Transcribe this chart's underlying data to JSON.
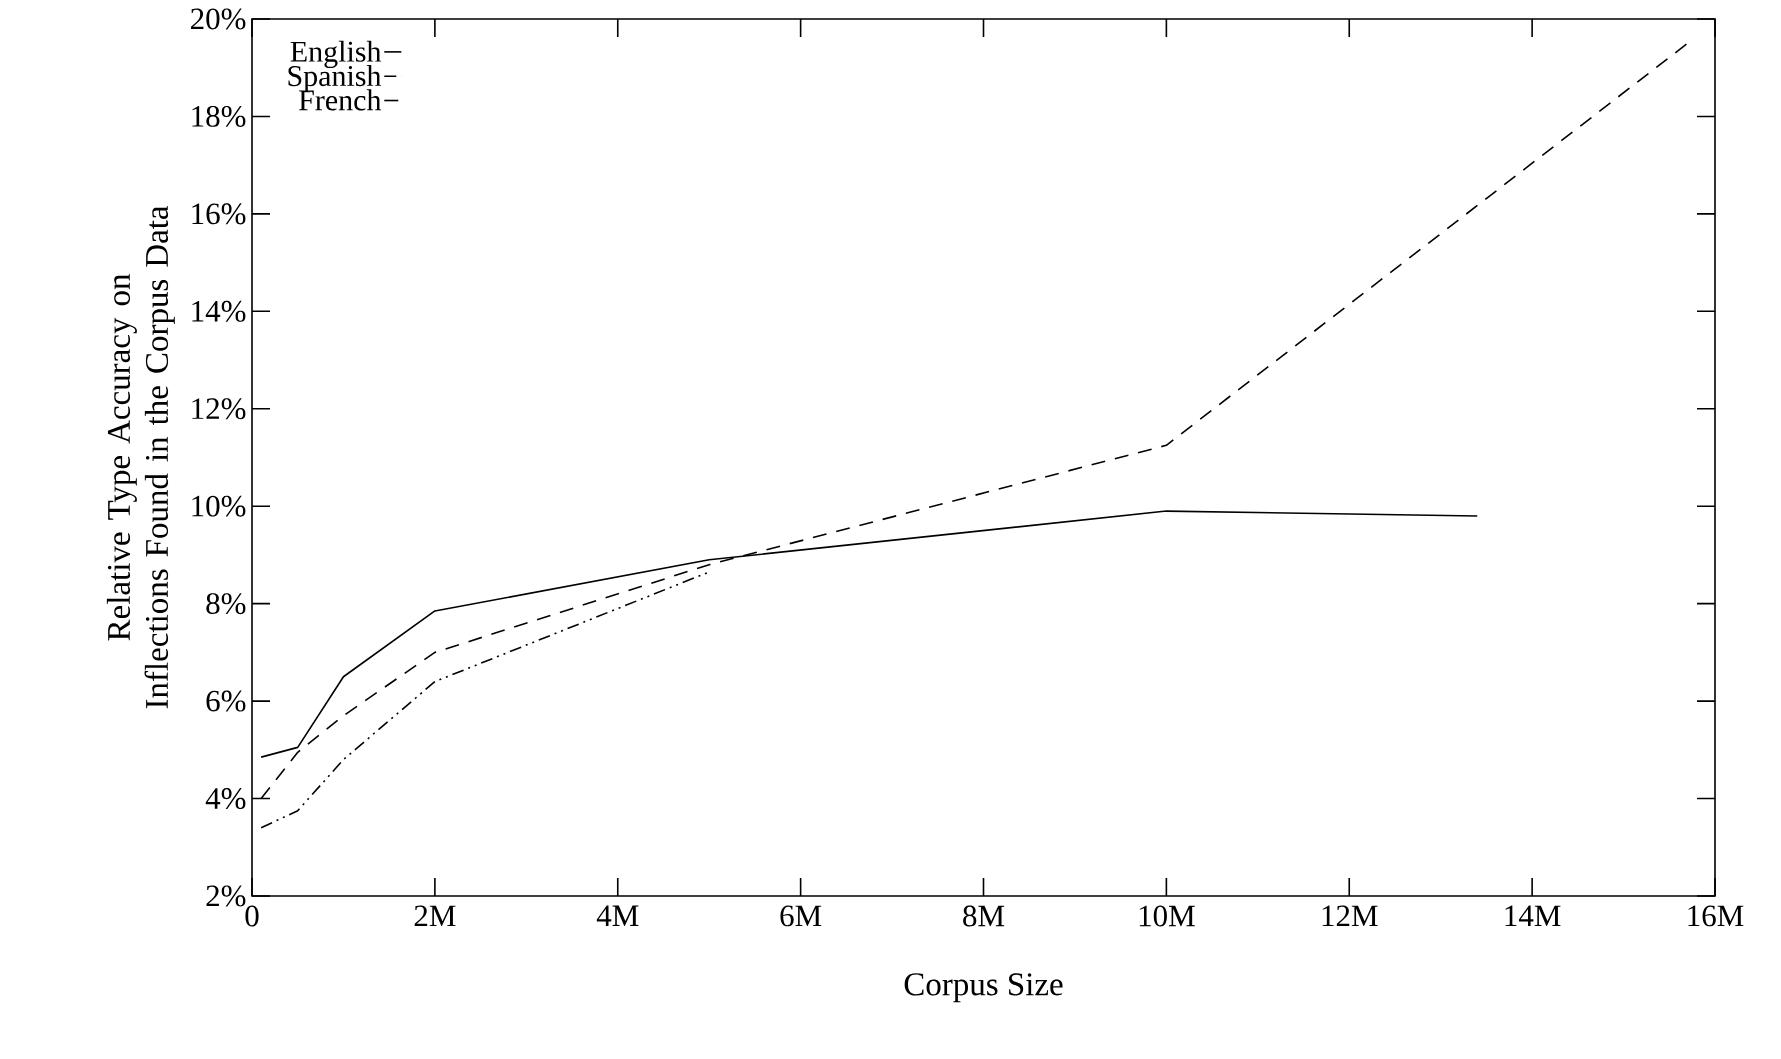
{
  "chart_data": {
    "type": "line",
    "xlabel": "Corpus Size",
    "ylabel": "Relative Type Accuracy on Inflections Found in the Corpus Data",
    "xlim": [
      0,
      16
    ],
    "ylim": [
      2,
      20
    ],
    "xticks": [
      0,
      {
        "value": 2,
        "label": "2M"
      },
      {
        "value": 4,
        "label": "4M"
      },
      {
        "value": 6,
        "label": "6M"
      },
      {
        "value": 8,
        "label": "8M"
      },
      {
        "value": 10,
        "label": "10M"
      },
      {
        "value": 12,
        "label": "12M"
      },
      {
        "value": 14,
        "label": "14M"
      },
      {
        "value": 16,
        "label": "16M"
      }
    ],
    "yticks": [
      {
        "value": 2,
        "label": "2%"
      },
      {
        "value": 4,
        "label": "4%"
      },
      {
        "value": 6,
        "label": "6%"
      },
      {
        "value": 8,
        "label": "8%"
      },
      {
        "value": 10,
        "label": "10%"
      },
      {
        "value": 12,
        "label": "12%"
      },
      {
        "value": 14,
        "label": "14%"
      },
      {
        "value": 16,
        "label": "16%"
      },
      {
        "value": 18,
        "label": "18%"
      },
      {
        "value": 20,
        "label": "20%"
      }
    ],
    "grid": false,
    "legend": "top left",
    "series": [
      {
        "name": "English",
        "color": "#000000",
        "line_style": "solid",
        "x": [
          0.1,
          0.5,
          1,
          2,
          5,
          10,
          13.4
        ],
        "values": [
          4.85,
          5.05,
          6.5,
          7.85,
          8.9,
          9.9,
          9.8
        ]
      },
      {
        "name": "Spanish",
        "color": "#000000",
        "line_style": "dashdotdotted",
        "x": [
          0.1,
          0.5,
          1,
          2,
          5
        ],
        "values": [
          3.4,
          3.75,
          4.8,
          6.4,
          8.65
        ]
      },
      {
        "name": "French",
        "color": "#000000",
        "line_style": "dashed",
        "x": [
          0.1,
          0.5,
          1,
          2,
          5,
          10,
          15.7
        ],
        "values": [
          4.0,
          4.95,
          5.7,
          7.0,
          8.8,
          11.25,
          19.5
        ]
      }
    ]
  }
}
